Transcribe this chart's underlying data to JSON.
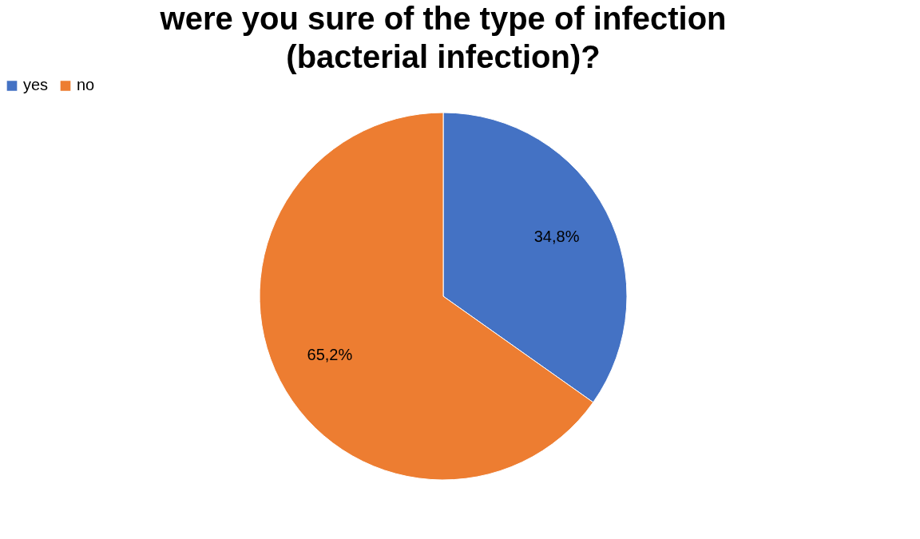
{
  "chart_data": {
    "type": "pie",
    "title": "were you sure of the type of infection (bacterial infection)?",
    "categories": [
      "yes",
      "no"
    ],
    "values": [
      34.8,
      65.2
    ],
    "colors": [
      "#4472c4",
      "#ed7d31"
    ],
    "value_labels": [
      "34,8%",
      "65,2%"
    ],
    "legend": "top"
  }
}
